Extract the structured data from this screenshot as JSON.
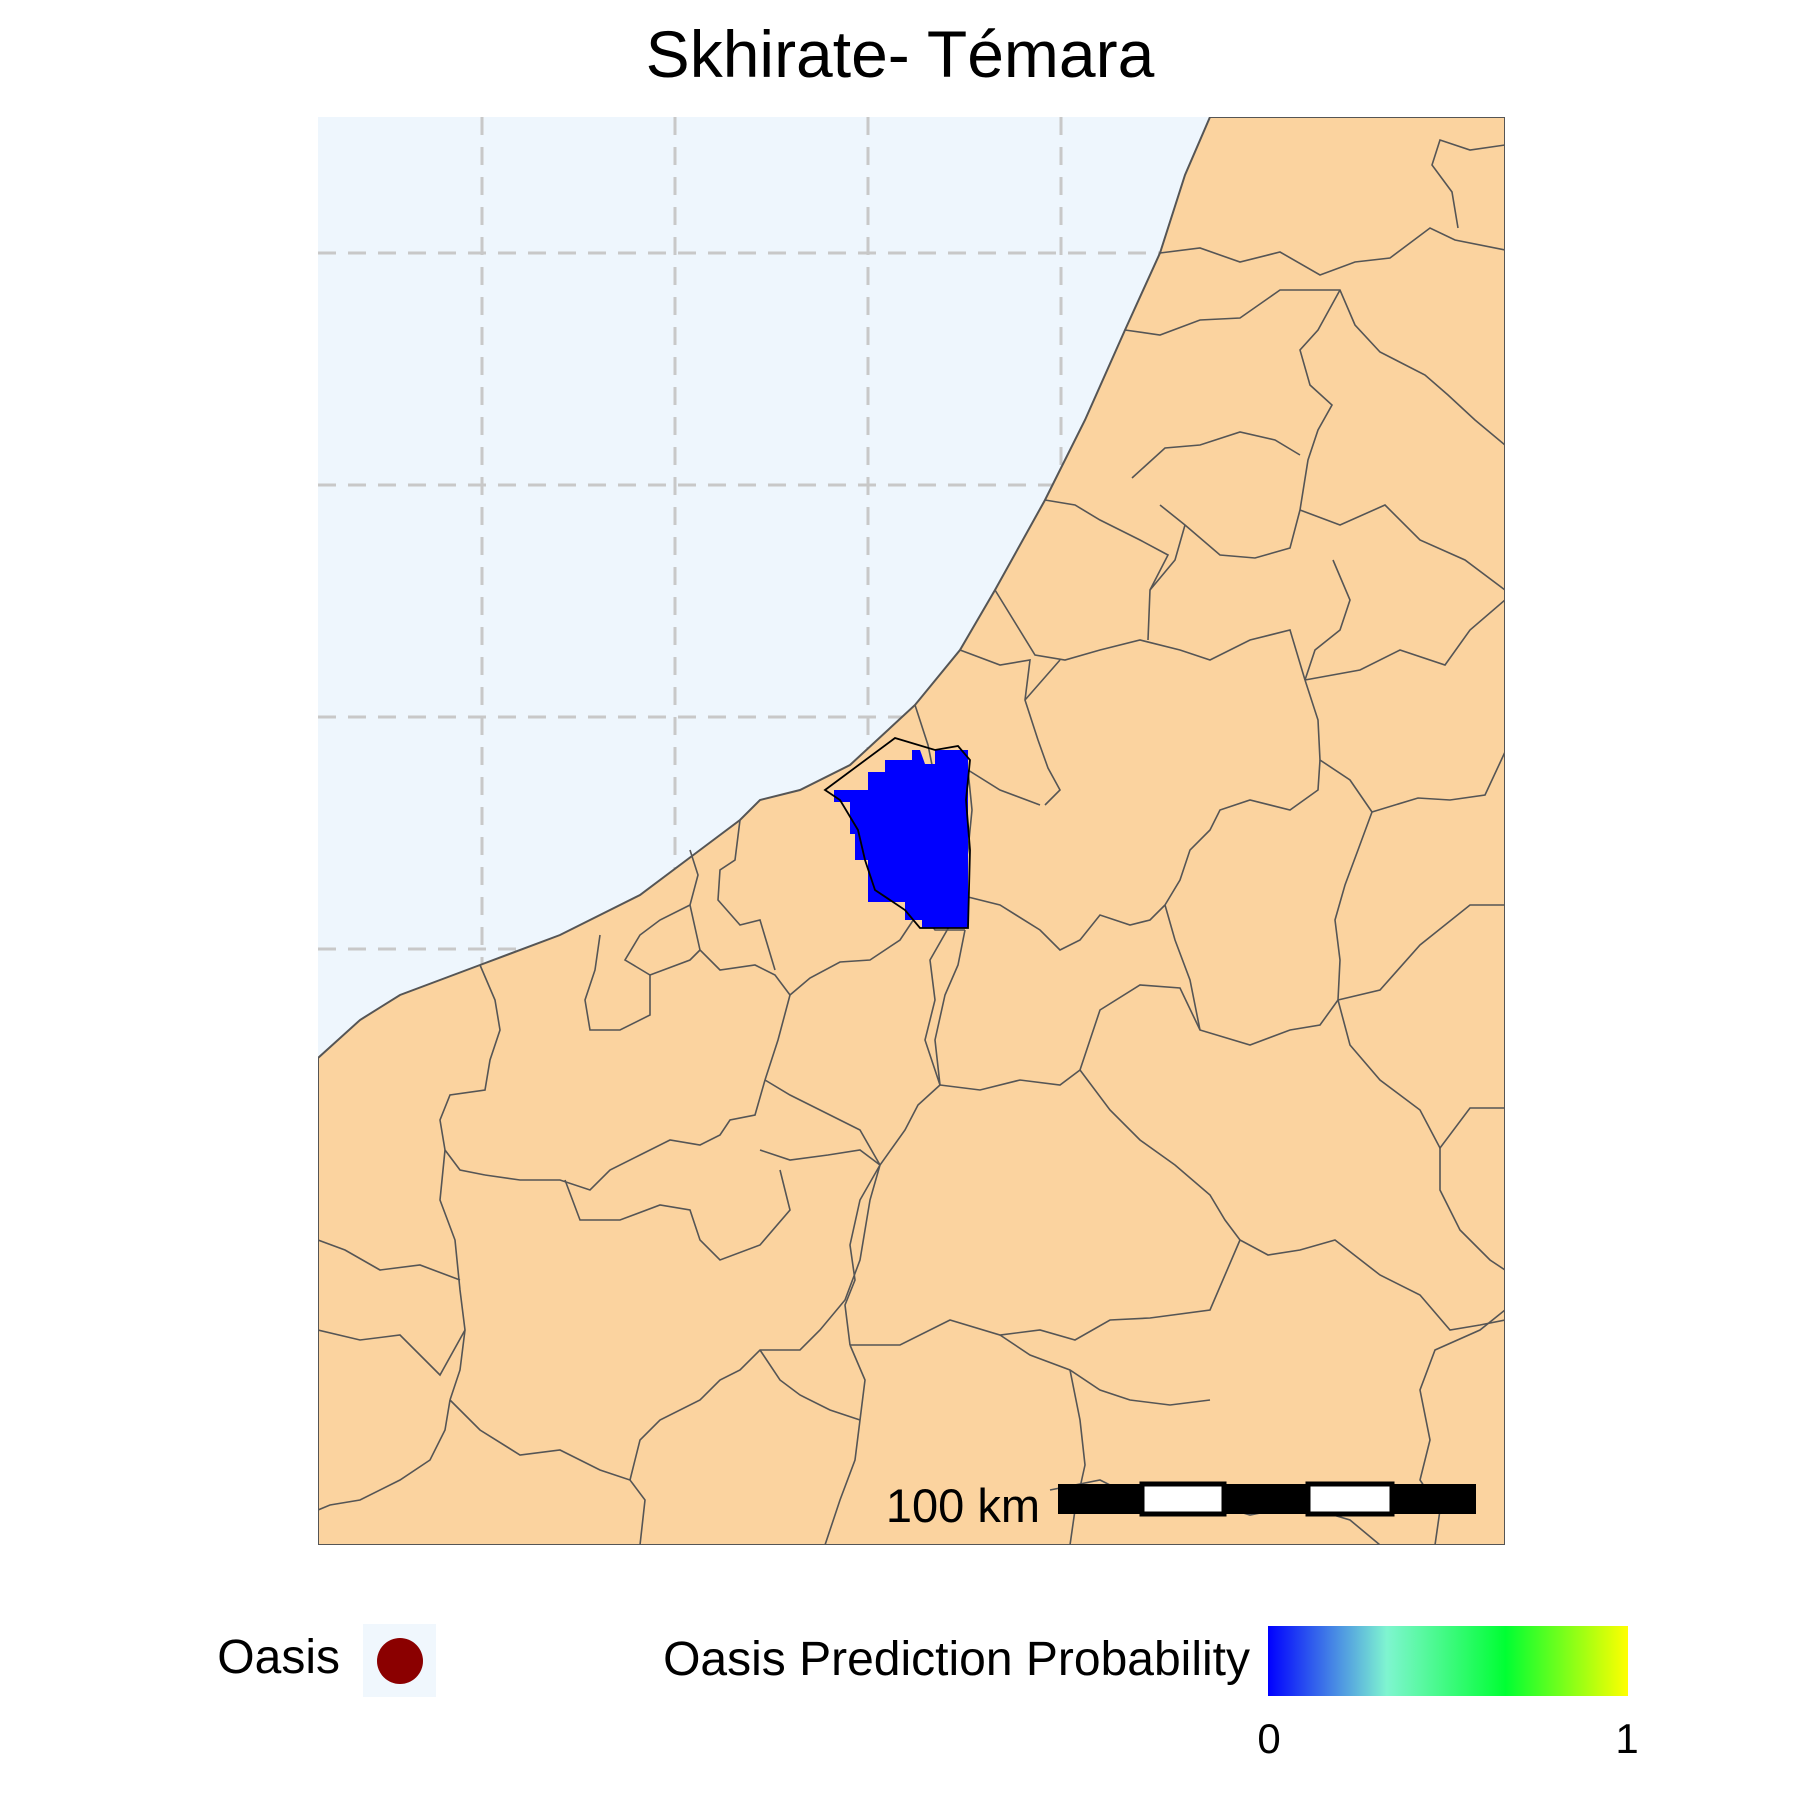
{
  "title": "Skhirate- Témara",
  "colors": {
    "sea": "#eef6fd",
    "land": "#fbd39f",
    "border": "#555555",
    "grid": "#c8c8c8",
    "prediction": "#0000ff",
    "oasis": "#8b0000"
  },
  "scale_bar": {
    "label": "100 km"
  },
  "legend": {
    "oasis_label": "Oasis",
    "oasis_icon": "filled-circle",
    "probability_label": "Oasis Prediction Probability",
    "ramp_colors": [
      "#0000ff",
      "#7ff5d0",
      "#00ff33",
      "#ffff00"
    ],
    "ticks": [
      "0",
      "1"
    ],
    "range": [
      0,
      1
    ]
  }
}
